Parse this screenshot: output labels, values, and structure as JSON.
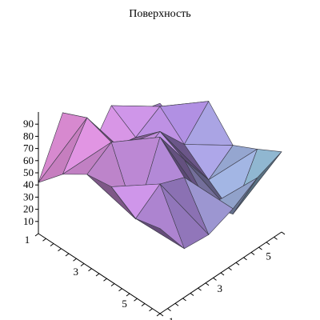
{
  "chart_data": {
    "type": "surface3d",
    "title": "Поверхность",
    "xlabel": "",
    "ylabel": "",
    "zlabel": "",
    "x_ticks": [
      "1",
      "3",
      "5"
    ],
    "y_ticks": [
      "1",
      "3",
      "5"
    ],
    "z_ticks": [
      "10",
      "20",
      "30",
      "40",
      "50",
      "60",
      "70",
      "80",
      "90"
    ],
    "x_range": [
      1,
      6
    ],
    "y_range": [
      1,
      6
    ],
    "zlim": [
      0,
      100
    ],
    "grid": false,
    "legend": "none",
    "z_values": [
      [
        42,
        86,
        35,
        65,
        46,
        40
      ],
      [
        62,
        95,
        55,
        52,
        64,
        30
      ],
      [
        75,
        88,
        58,
        70,
        46,
        68
      ],
      [
        78,
        38,
        92,
        60,
        30,
        45
      ],
      [
        65,
        80,
        72,
        35,
        15,
        55
      ],
      [
        70,
        40,
        38,
        46,
        58,
        66
      ]
    ],
    "color_low": "#d98ad1",
    "color_mid": "#9d7fc9",
    "color_high": "#8be2dc"
  }
}
